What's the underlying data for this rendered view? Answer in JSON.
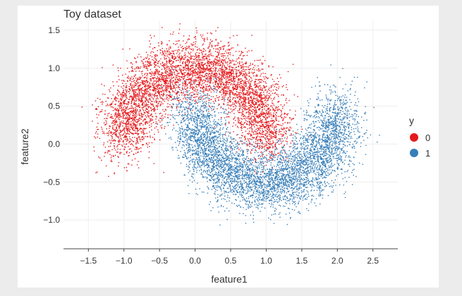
{
  "chart_data": {
    "type": "scatter",
    "title": "Toy dataset",
    "xlabel": "feature1",
    "ylabel": "feature2",
    "xlim": [
      -1.85,
      2.85
    ],
    "ylim": [
      -1.38,
      1.62
    ],
    "xticks": [
      -1.5,
      -1.0,
      -0.5,
      0.0,
      0.5,
      1.0,
      1.5,
      2.0,
      2.5
    ],
    "yticks": [
      -1.0,
      -0.5,
      0.0,
      0.5,
      1.0,
      1.5
    ],
    "xtick_labels": [
      "−1.5",
      "−1.0",
      "−0.5",
      "0.0",
      "0.5",
      "1.0",
      "1.5",
      "2.0",
      "2.5"
    ],
    "ytick_labels": [
      "−1.0",
      "−0.5",
      "0.0",
      "0.5",
      "1.0",
      "1.5"
    ],
    "grid": true,
    "legend": {
      "title": "y",
      "position": "right"
    },
    "series": [
      {
        "name": "0",
        "color": "#e41a1c",
        "shape": "upper moon",
        "center": [
          0.0,
          0.0
        ],
        "radius": 1.0,
        "angle_range_deg": [
          0,
          180
        ],
        "noise_sd": 0.2,
        "n_points": 5000
      },
      {
        "name": "1",
        "color": "#377eb8",
        "shape": "lower moon",
        "center": [
          1.0,
          0.5
        ],
        "radius": 1.0,
        "angle_range_deg": [
          180,
          360
        ],
        "noise_sd": 0.2,
        "n_points": 5000
      }
    ]
  }
}
